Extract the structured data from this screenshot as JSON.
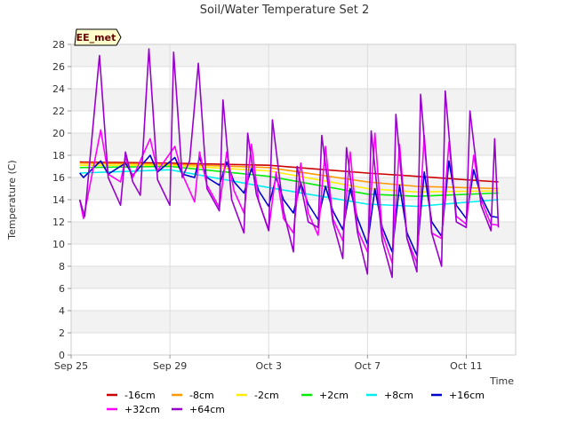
{
  "chart_data": {
    "type": "line",
    "title": "Soil/Water Temperature Set 2",
    "xlabel": "Time",
    "ylabel": "Temperature (C)",
    "badge": "EE_met",
    "ylim": [
      0,
      28
    ],
    "yticks": [
      0,
      2,
      4,
      6,
      8,
      10,
      12,
      14,
      16,
      18,
      20,
      22,
      24,
      26,
      28
    ],
    "xlim": [
      0,
      18
    ],
    "xticks": [
      {
        "day": 0,
        "label": "Sep 25"
      },
      {
        "day": 4,
        "label": "Sep 29"
      },
      {
        "day": 8,
        "label": "Oct 3"
      },
      {
        "day": 12,
        "label": "Oct 7"
      },
      {
        "day": 16,
        "label": "Oct 11"
      }
    ],
    "x_day_range": [
      0.35,
      17.3
    ],
    "series": [
      {
        "name": "-16cm",
        "color": "#cc0000",
        "points": [
          [
            0.35,
            17.4
          ],
          [
            4,
            17.3
          ],
          [
            8,
            17.1
          ],
          [
            12,
            16.4
          ],
          [
            14,
            16.1
          ],
          [
            17.3,
            15.6
          ]
        ]
      },
      {
        "name": "-8cm",
        "color": "#ff9900",
        "points": [
          [
            0.35,
            17.3
          ],
          [
            4,
            17.2
          ],
          [
            8,
            16.9
          ],
          [
            12,
            15.6
          ],
          [
            14,
            15.2
          ],
          [
            17.3,
            15.0
          ]
        ]
      },
      {
        "name": "-2cm",
        "color": "#ffee00",
        "points": [
          [
            0.35,
            17.1
          ],
          [
            4,
            17.1
          ],
          [
            8,
            16.6
          ],
          [
            12,
            15.0
          ],
          [
            14,
            14.7
          ],
          [
            17.3,
            14.8
          ]
        ]
      },
      {
        "name": "+2cm",
        "color": "#00ee00",
        "points": [
          [
            0.35,
            16.9
          ],
          [
            4,
            17.0
          ],
          [
            8,
            16.1
          ],
          [
            12,
            14.5
          ],
          [
            14,
            14.3
          ],
          [
            17.3,
            14.6
          ]
        ]
      },
      {
        "name": "+8cm",
        "color": "#00eeee",
        "points": [
          [
            0.35,
            16.4
          ],
          [
            4,
            16.7
          ],
          [
            8,
            15.1
          ],
          [
            12,
            13.6
          ],
          [
            14,
            13.4
          ],
          [
            17.3,
            14.0
          ]
        ]
      },
      {
        "name": "+16cm",
        "color": "#0000cc",
        "points": [
          [
            0.35,
            16.4
          ],
          [
            0.5,
            16.0
          ],
          [
            1.2,
            17.5
          ],
          [
            1.5,
            16.3
          ],
          [
            2.2,
            17.3
          ],
          [
            2.5,
            16.2
          ],
          [
            3.2,
            18.0
          ],
          [
            3.5,
            16.5
          ],
          [
            4.2,
            17.8
          ],
          [
            4.5,
            16.3
          ],
          [
            5.0,
            16.0
          ],
          [
            5.2,
            17.8
          ],
          [
            5.5,
            16.0
          ],
          [
            6.0,
            15.3
          ],
          [
            6.3,
            17.4
          ],
          [
            6.6,
            15.6
          ],
          [
            7.0,
            14.6
          ],
          [
            7.3,
            16.8
          ],
          [
            7.6,
            14.8
          ],
          [
            8.0,
            13.4
          ],
          [
            8.3,
            16.0
          ],
          [
            8.6,
            14.0
          ],
          [
            9.0,
            12.8
          ],
          [
            9.3,
            15.5
          ],
          [
            9.6,
            13.6
          ],
          [
            10.0,
            12.2
          ],
          [
            10.3,
            15.2
          ],
          [
            10.6,
            13.0
          ],
          [
            11.0,
            11.3
          ],
          [
            11.3,
            15.0
          ],
          [
            11.6,
            12.3
          ],
          [
            12.0,
            10.0
          ],
          [
            12.3,
            15.0
          ],
          [
            12.6,
            11.5
          ],
          [
            13.0,
            9.3
          ],
          [
            13.3,
            15.3
          ],
          [
            13.6,
            11.0
          ],
          [
            14.0,
            9.0
          ],
          [
            14.3,
            16.5
          ],
          [
            14.6,
            12.0
          ],
          [
            15.0,
            10.7
          ],
          [
            15.3,
            17.5
          ],
          [
            15.6,
            13.5
          ],
          [
            16.0,
            12.3
          ],
          [
            16.3,
            16.7
          ],
          [
            16.6,
            14.3
          ],
          [
            17.0,
            12.5
          ],
          [
            17.3,
            12.4
          ]
        ]
      },
      {
        "name": "+32cm",
        "color": "#ff00ff",
        "points": [
          [
            0.35,
            14.0
          ],
          [
            0.5,
            12.3
          ],
          [
            1.2,
            20.3
          ],
          [
            1.5,
            16.3
          ],
          [
            2.0,
            15.6
          ],
          [
            2.2,
            17.8
          ],
          [
            2.5,
            16.0
          ],
          [
            3.2,
            19.5
          ],
          [
            3.5,
            16.6
          ],
          [
            4.2,
            18.8
          ],
          [
            4.5,
            16.3
          ],
          [
            5.0,
            13.8
          ],
          [
            5.2,
            18.3
          ],
          [
            5.5,
            15.3
          ],
          [
            6.0,
            13.3
          ],
          [
            6.3,
            18.3
          ],
          [
            6.6,
            14.8
          ],
          [
            7.0,
            12.8
          ],
          [
            7.3,
            19.0
          ],
          [
            7.6,
            13.8
          ],
          [
            8.0,
            11.3
          ],
          [
            8.3,
            16.5
          ],
          [
            8.6,
            12.3
          ],
          [
            9.0,
            11.0
          ],
          [
            9.3,
            17.3
          ],
          [
            9.6,
            12.8
          ],
          [
            10.0,
            10.8
          ],
          [
            10.3,
            18.8
          ],
          [
            10.6,
            12.3
          ],
          [
            11.0,
            10.3
          ],
          [
            11.3,
            18.3
          ],
          [
            11.6,
            11.3
          ],
          [
            12.0,
            9.3
          ],
          [
            12.3,
            20.0
          ],
          [
            12.6,
            11.0
          ],
          [
            13.0,
            8.3
          ],
          [
            13.3,
            19.0
          ],
          [
            13.6,
            10.5
          ],
          [
            14.0,
            8.3
          ],
          [
            14.3,
            19.8
          ],
          [
            14.6,
            11.0
          ],
          [
            15.0,
            10.5
          ],
          [
            15.3,
            19.2
          ],
          [
            15.6,
            12.5
          ],
          [
            16.0,
            11.8
          ],
          [
            16.3,
            18.0
          ],
          [
            16.6,
            14.0
          ],
          [
            17.0,
            11.8
          ],
          [
            17.3,
            11.7
          ]
        ]
      },
      {
        "name": "+64cm",
        "color": "#9900cc",
        "points": [
          [
            0.35,
            14.0
          ],
          [
            0.55,
            12.5
          ],
          [
            1.15,
            27.0
          ],
          [
            1.5,
            16.0
          ],
          [
            2.0,
            13.5
          ],
          [
            2.2,
            18.3
          ],
          [
            2.5,
            15.6
          ],
          [
            2.8,
            14.4
          ],
          [
            3.15,
            27.6
          ],
          [
            3.5,
            15.8
          ],
          [
            4.0,
            13.5
          ],
          [
            4.15,
            27.3
          ],
          [
            4.5,
            16.0
          ],
          [
            4.8,
            17.5
          ],
          [
            5.15,
            26.3
          ],
          [
            5.5,
            15.0
          ],
          [
            6.0,
            13.0
          ],
          [
            6.15,
            23.0
          ],
          [
            6.5,
            14.0
          ],
          [
            7.0,
            11.0
          ],
          [
            7.15,
            20.0
          ],
          [
            7.5,
            14.5
          ],
          [
            8.0,
            11.2
          ],
          [
            8.15,
            21.2
          ],
          [
            8.6,
            13.0
          ],
          [
            9.0,
            9.3
          ],
          [
            9.15,
            17.0
          ],
          [
            9.6,
            12.0
          ],
          [
            10.0,
            11.5
          ],
          [
            10.15,
            19.8
          ],
          [
            10.6,
            12.0
          ],
          [
            11.0,
            8.7
          ],
          [
            11.15,
            18.7
          ],
          [
            11.6,
            11.0
          ],
          [
            12.0,
            7.3
          ],
          [
            12.15,
            20.2
          ],
          [
            12.6,
            10.3
          ],
          [
            13.0,
            7.0
          ],
          [
            13.15,
            21.7
          ],
          [
            13.6,
            10.5
          ],
          [
            14.0,
            7.5
          ],
          [
            14.15,
            23.5
          ],
          [
            14.6,
            11.0
          ],
          [
            15.0,
            8.0
          ],
          [
            15.15,
            23.8
          ],
          [
            15.6,
            12.0
          ],
          [
            16.0,
            11.5
          ],
          [
            16.15,
            22.0
          ],
          [
            16.6,
            13.5
          ],
          [
            17.0,
            11.2
          ],
          [
            17.15,
            19.5
          ],
          [
            17.3,
            11.5
          ]
        ]
      }
    ],
    "legend_position": "bottom"
  }
}
